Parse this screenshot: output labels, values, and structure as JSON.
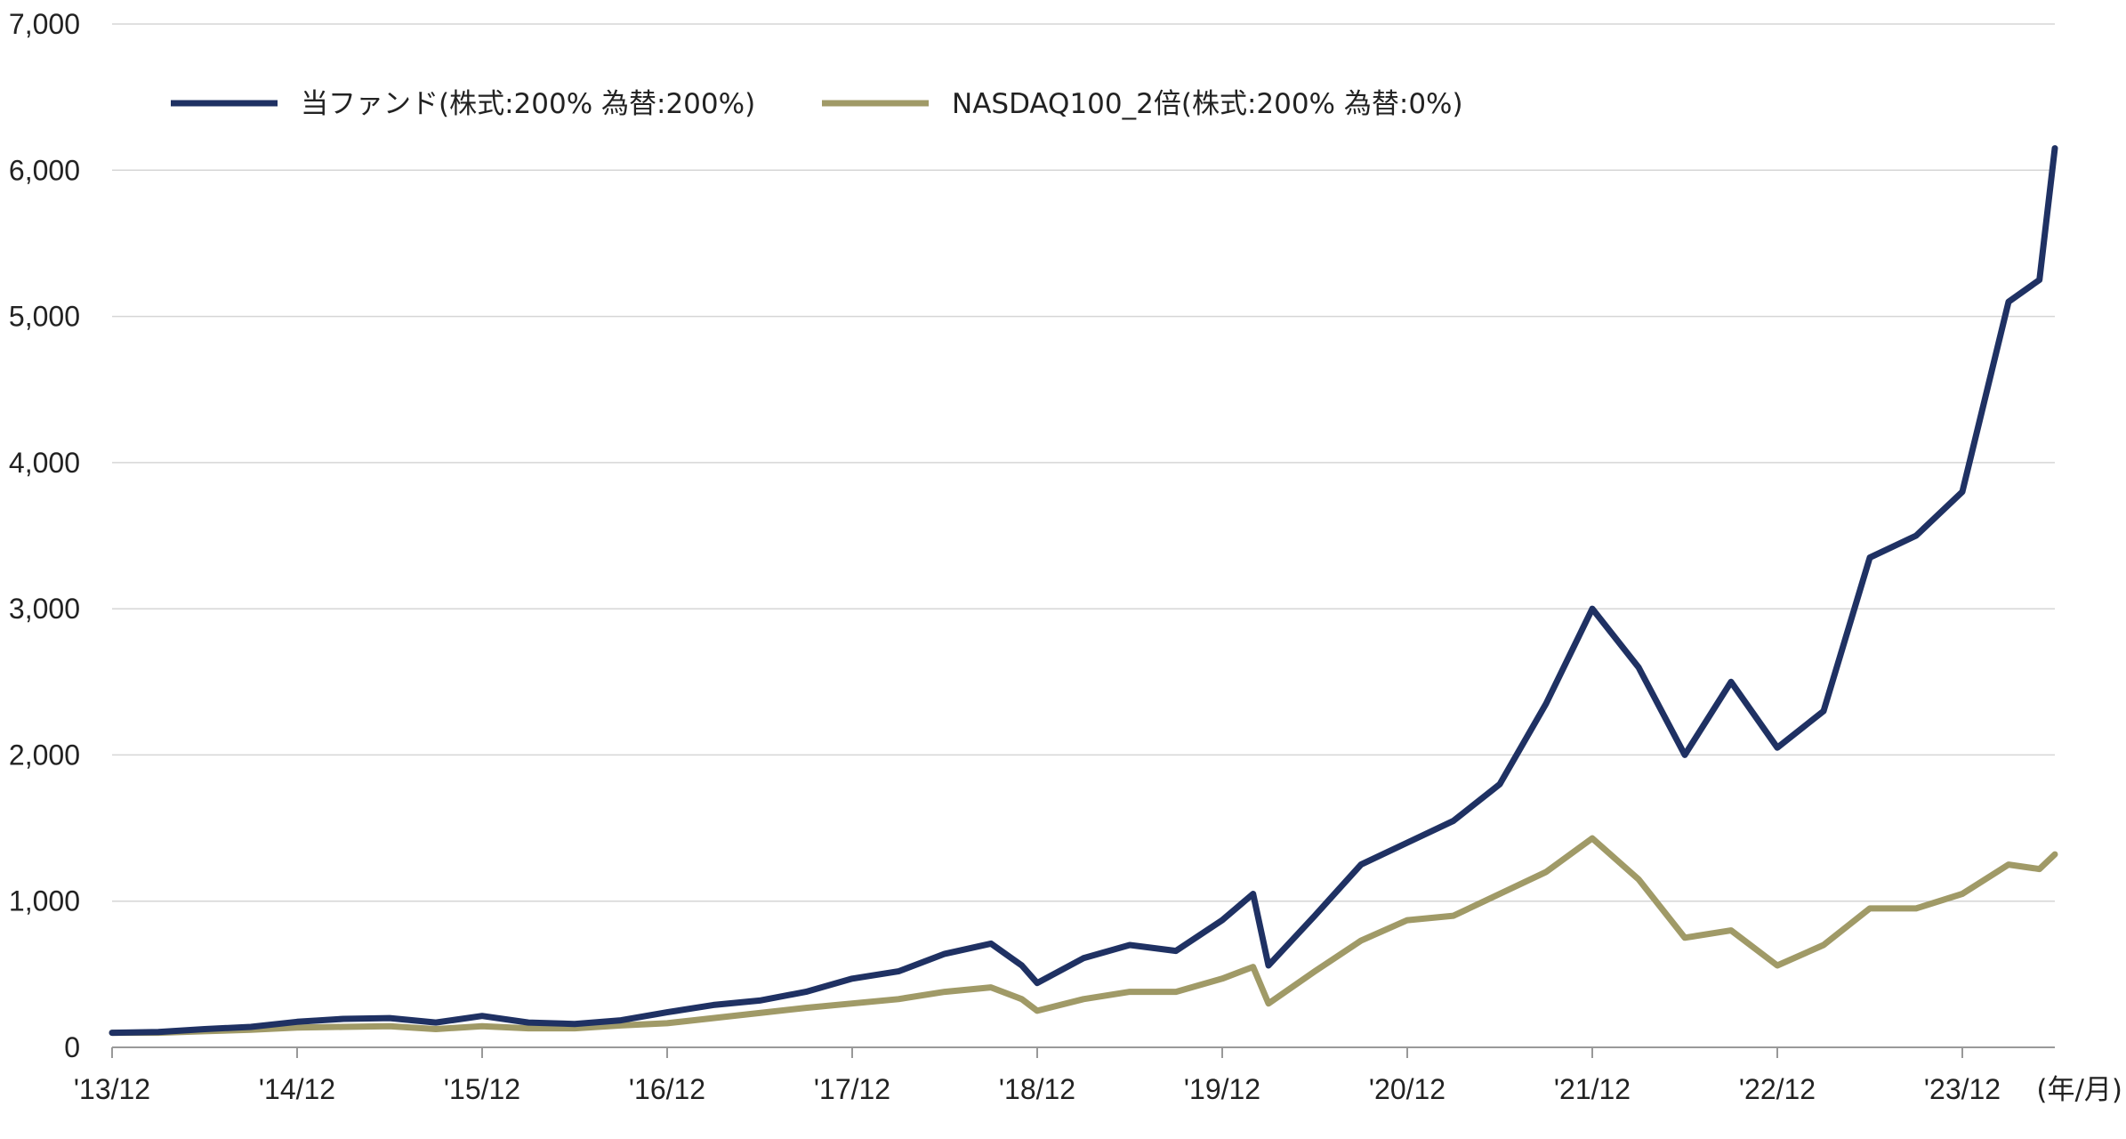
{
  "chart_data": {
    "type": "line",
    "title": "",
    "xlabel": "",
    "ylabel": "",
    "x_unit_label": "(年/月)",
    "ylim": [
      0,
      7000
    ],
    "y_ticks": [
      0,
      1000,
      2000,
      3000,
      4000,
      5000,
      6000,
      7000
    ],
    "y_tick_labels": [
      "0",
      "1,000",
      "2,000",
      "3,000",
      "4,000",
      "5,000",
      "6,000",
      "7,000"
    ],
    "x_tick_labels": [
      "'13/12",
      "'14/12",
      "'15/12",
      "'16/12",
      "'17/12",
      "'18/12",
      "'19/12",
      "'20/12",
      "'21/12",
      "'22/12",
      "'23/12"
    ],
    "x_range": [
      "2013-12",
      "2024-06"
    ],
    "grid": "horizontal",
    "legend_position": "top-left",
    "series": [
      {
        "name": "当ファンド(株式:200% 為替:200%)",
        "color": "#1f3163",
        "points": [
          [
            "2013-12",
            100
          ],
          [
            "2014-03",
            105
          ],
          [
            "2014-06",
            125
          ],
          [
            "2014-09",
            140
          ],
          [
            "2014-12",
            175
          ],
          [
            "2015-03",
            195
          ],
          [
            "2015-06",
            200
          ],
          [
            "2015-09",
            170
          ],
          [
            "2015-12",
            215
          ],
          [
            "2016-03",
            170
          ],
          [
            "2016-06",
            160
          ],
          [
            "2016-09",
            185
          ],
          [
            "2016-12",
            240
          ],
          [
            "2017-03",
            290
          ],
          [
            "2017-06",
            320
          ],
          [
            "2017-09",
            380
          ],
          [
            "2017-12",
            470
          ],
          [
            "2018-03",
            520
          ],
          [
            "2018-06",
            640
          ],
          [
            "2018-09",
            710
          ],
          [
            "2018-11",
            560
          ],
          [
            "2018-12",
            440
          ],
          [
            "2019-03",
            610
          ],
          [
            "2019-06",
            700
          ],
          [
            "2019-09",
            660
          ],
          [
            "2019-12",
            870
          ],
          [
            "2020-02",
            1050
          ],
          [
            "2020-03",
            560
          ],
          [
            "2020-06",
            900
          ],
          [
            "2020-09",
            1250
          ],
          [
            "2020-12",
            1400
          ],
          [
            "2021-03",
            1550
          ],
          [
            "2021-06",
            1800
          ],
          [
            "2021-09",
            2350
          ],
          [
            "2021-12",
            3000
          ],
          [
            "2022-03",
            2600
          ],
          [
            "2022-06",
            2000
          ],
          [
            "2022-09",
            2500
          ],
          [
            "2022-12",
            2050
          ],
          [
            "2023-03",
            2300
          ],
          [
            "2023-06",
            3350
          ],
          [
            "2023-09",
            3500
          ],
          [
            "2023-12",
            3800
          ],
          [
            "2024-03",
            5100
          ],
          [
            "2024-05",
            5250
          ],
          [
            "2024-06",
            6150
          ]
        ]
      },
      {
        "name": "NASDAQ100_2倍(株式:200% 為替:0%)",
        "color": "#a09a67",
        "points": [
          [
            "2013-12",
            100
          ],
          [
            "2014-03",
            100
          ],
          [
            "2014-06",
            110
          ],
          [
            "2014-09",
            120
          ],
          [
            "2014-12",
            135
          ],
          [
            "2015-03",
            140
          ],
          [
            "2015-06",
            145
          ],
          [
            "2015-09",
            125
          ],
          [
            "2015-12",
            145
          ],
          [
            "2016-03",
            130
          ],
          [
            "2016-06",
            130
          ],
          [
            "2016-09",
            150
          ],
          [
            "2016-12",
            165
          ],
          [
            "2017-03",
            200
          ],
          [
            "2017-06",
            235
          ],
          [
            "2017-09",
            270
          ],
          [
            "2017-12",
            300
          ],
          [
            "2018-03",
            330
          ],
          [
            "2018-06",
            380
          ],
          [
            "2018-09",
            410
          ],
          [
            "2018-11",
            330
          ],
          [
            "2018-12",
            250
          ],
          [
            "2019-03",
            330
          ],
          [
            "2019-06",
            380
          ],
          [
            "2019-09",
            380
          ],
          [
            "2019-12",
            470
          ],
          [
            "2020-02",
            550
          ],
          [
            "2020-03",
            300
          ],
          [
            "2020-06",
            520
          ],
          [
            "2020-09",
            730
          ],
          [
            "2020-12",
            870
          ],
          [
            "2021-03",
            900
          ],
          [
            "2021-06",
            1050
          ],
          [
            "2021-09",
            1200
          ],
          [
            "2021-12",
            1430
          ],
          [
            "2022-03",
            1150
          ],
          [
            "2022-06",
            750
          ],
          [
            "2022-09",
            800
          ],
          [
            "2022-12",
            560
          ],
          [
            "2023-03",
            700
          ],
          [
            "2023-06",
            950
          ],
          [
            "2023-09",
            950
          ],
          [
            "2023-12",
            1050
          ],
          [
            "2024-03",
            1250
          ],
          [
            "2024-05",
            1220
          ],
          [
            "2024-06",
            1320
          ]
        ]
      }
    ]
  }
}
